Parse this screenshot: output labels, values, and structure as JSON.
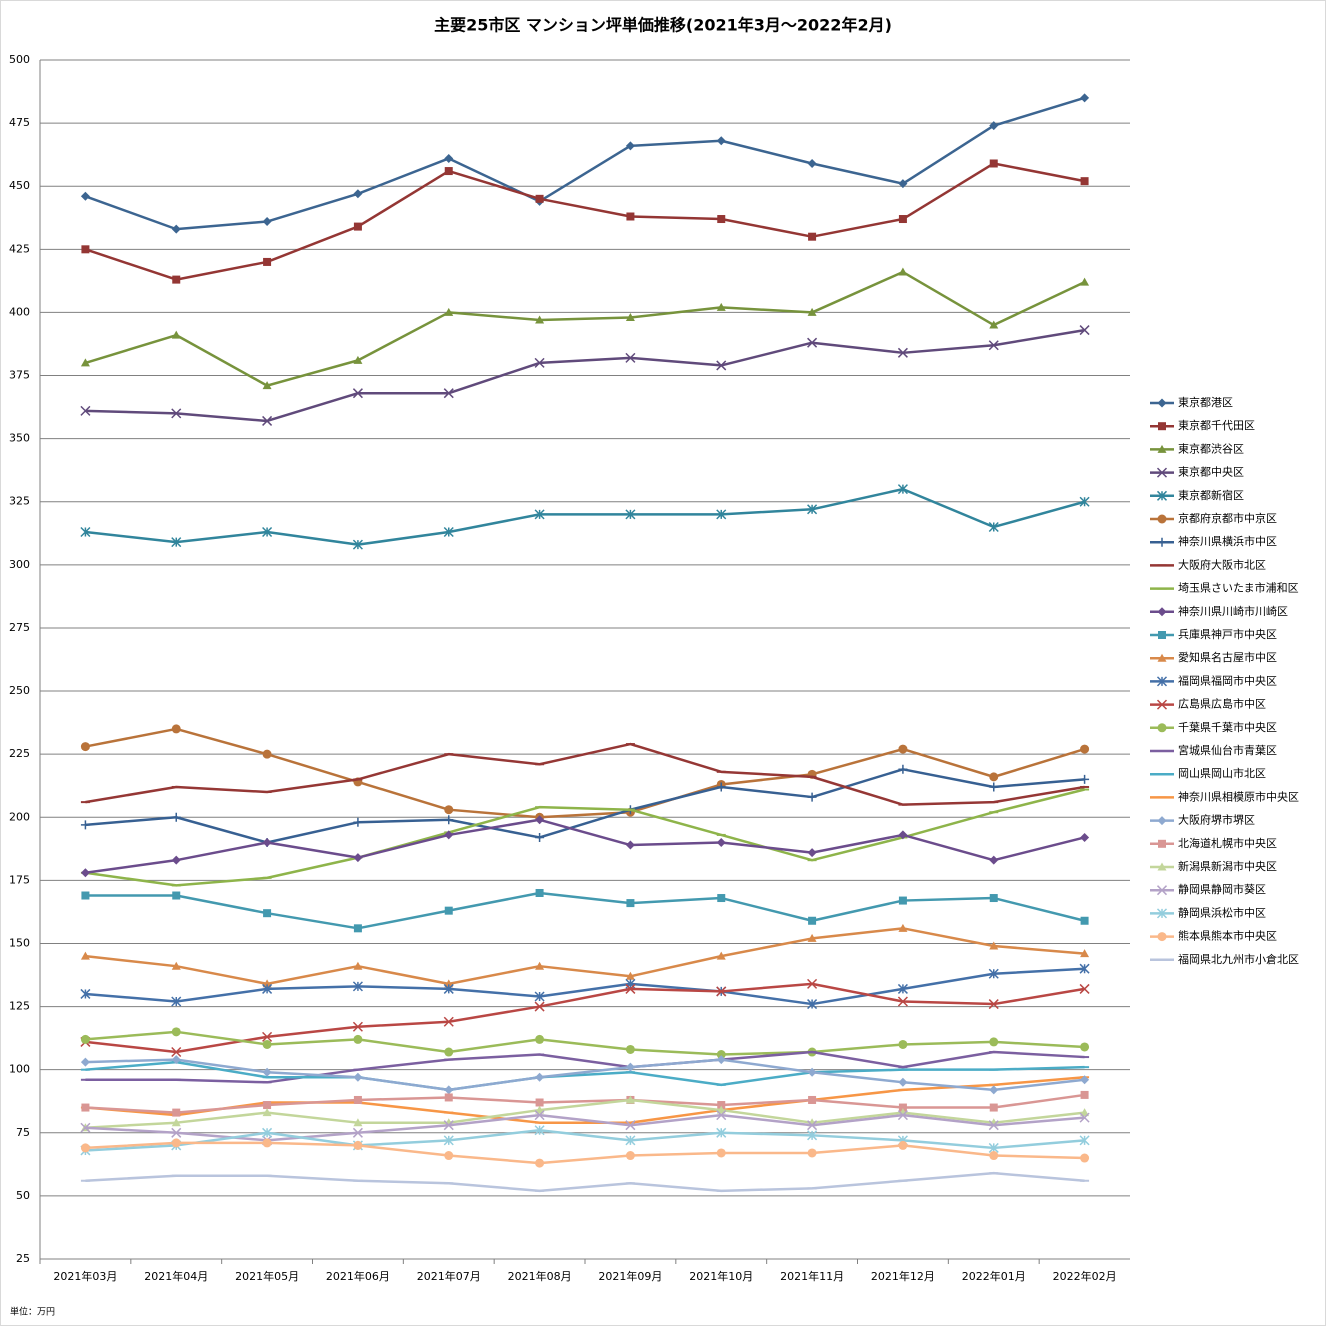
{
  "chart_data": {
    "type": "line",
    "title": "主要25市区 マンション坪単価推移(2021年3月～2022年2月)",
    "note": "単位：万円",
    "categories": [
      "2021年03月",
      "2021年04月",
      "2021年05月",
      "2021年06月",
      "2021年07月",
      "2021年08月",
      "2021年09月",
      "2021年10月",
      "2021年11月",
      "2021年12月",
      "2022年01月",
      "2022年02月"
    ],
    "ylim": [
      25,
      500
    ],
    "yticks": [
      25,
      50,
      75,
      100,
      125,
      150,
      175,
      200,
      225,
      250,
      275,
      300,
      325,
      350,
      375,
      400,
      425,
      450,
      475,
      500
    ],
    "grid": true,
    "legend": "right",
    "series": [
      {
        "name": "東京都港区",
        "color": "#3c6591",
        "marker": "diamond",
        "values": [
          446,
          433,
          436,
          447,
          461,
          444,
          466,
          468,
          459,
          451,
          474,
          485
        ]
      },
      {
        "name": "東京都千代田区",
        "color": "#943634",
        "marker": "square",
        "values": [
          425,
          413,
          420,
          434,
          456,
          445,
          438,
          437,
          430,
          437,
          459,
          452
        ]
      },
      {
        "name": "東京都渋谷区",
        "color": "#77933c",
        "marker": "triangle",
        "values": [
          380,
          391,
          371,
          381,
          400,
          397,
          398,
          402,
          400,
          416,
          395,
          412
        ]
      },
      {
        "name": "東京都中央区",
        "color": "#604a7b",
        "marker": "x",
        "values": [
          361,
          360,
          357,
          368,
          368,
          380,
          382,
          379,
          388,
          384,
          387,
          393
        ]
      },
      {
        "name": "東京都新宿区",
        "color": "#31859c",
        "marker": "star",
        "values": [
          313,
          309,
          313,
          308,
          313,
          320,
          320,
          320,
          322,
          330,
          315,
          325
        ]
      },
      {
        "name": "京都府京都市中京区",
        "color": "#b9733a",
        "marker": "circle",
        "values": [
          228,
          235,
          225,
          214,
          203,
          200,
          202,
          213,
          217,
          227,
          216,
          227
        ]
      },
      {
        "name": "神奈川県横浜市中区",
        "color": "#376092",
        "marker": "plus",
        "values": [
          197,
          200,
          190,
          198,
          199,
          192,
          203,
          212,
          208,
          219,
          212,
          215
        ]
      },
      {
        "name": "大阪府大阪市北区",
        "color": "#953735",
        "marker": "dash",
        "values": [
          206,
          212,
          210,
          215,
          225,
          221,
          229,
          218,
          216,
          205,
          206,
          212
        ]
      },
      {
        "name": "埼玉県さいたま市浦和区",
        "color": "#8eb44a",
        "marker": "dash",
        "values": [
          178,
          173,
          176,
          184,
          194,
          204,
          203,
          193,
          183,
          192,
          202,
          211
        ]
      },
      {
        "name": "神奈川県川崎市川崎区",
        "color": "#6b4c8c",
        "marker": "diamond",
        "values": [
          178,
          183,
          190,
          184,
          193,
          199,
          189,
          190,
          186,
          193,
          183,
          192
        ]
      },
      {
        "name": "兵庫県神戸市中央区",
        "color": "#4399af",
        "marker": "square",
        "values": [
          169,
          169,
          162,
          156,
          163,
          170,
          166,
          168,
          159,
          167,
          168,
          159
        ]
      },
      {
        "name": "愛知県名古屋市中区",
        "color": "#d8894a",
        "marker": "triangle",
        "values": [
          145,
          141,
          134,
          141,
          134,
          141,
          137,
          145,
          152,
          156,
          149,
          146
        ]
      },
      {
        "name": "福岡県福岡市中央区",
        "color": "#4470a8",
        "marker": "star",
        "values": [
          130,
          127,
          132,
          133,
          132,
          129,
          134,
          131,
          126,
          132,
          138,
          140
        ]
      },
      {
        "name": "広島県広島市中区",
        "color": "#b94744",
        "marker": "x",
        "values": [
          111,
          107,
          113,
          117,
          119,
          125,
          132,
          131,
          134,
          127,
          126,
          132
        ]
      },
      {
        "name": "千葉県千葉市中央区",
        "color": "#9bbb59",
        "marker": "circle",
        "values": [
          112,
          115,
          110,
          112,
          107,
          112,
          108,
          106,
          107,
          110,
          111,
          109
        ]
      },
      {
        "name": "宮城県仙台市青葉区",
        "color": "#7b5fa0",
        "marker": "dash",
        "values": [
          96,
          96,
          95,
          100,
          104,
          106,
          101,
          104,
          107,
          101,
          107,
          105
        ]
      },
      {
        "name": "岡山県岡山市北区",
        "color": "#4bacc6",
        "marker": "dash",
        "values": [
          100,
          103,
          97,
          97,
          92,
          97,
          99,
          94,
          99,
          100,
          100,
          101
        ]
      },
      {
        "name": "神奈川県相模原市中央区",
        "color": "#f79646",
        "marker": "dash",
        "values": [
          85,
          82,
          87,
          87,
          83,
          79,
          79,
          84,
          88,
          92,
          94,
          97
        ]
      },
      {
        "name": "大阪府堺市堺区",
        "color": "#8ea9d0",
        "marker": "diamond",
        "values": [
          103,
          104,
          99,
          97,
          92,
          97,
          101,
          104,
          99,
          95,
          92,
          96
        ]
      },
      {
        "name": "北海道札幌市中央区",
        "color": "#d99694",
        "marker": "square",
        "values": [
          85,
          83,
          86,
          88,
          89,
          87,
          88,
          86,
          88,
          85,
          85,
          90
        ]
      },
      {
        "name": "新潟県新潟市中央区",
        "color": "#c3d69b",
        "marker": "triangle",
        "values": [
          77,
          79,
          83,
          79,
          79,
          84,
          88,
          84,
          79,
          83,
          79,
          83
        ]
      },
      {
        "name": "静岡県静岡市葵区",
        "color": "#b3a2c7",
        "marker": "x",
        "values": [
          77,
          75,
          72,
          75,
          78,
          82,
          78,
          82,
          78,
          82,
          78,
          81
        ]
      },
      {
        "name": "静岡県浜松市中区",
        "color": "#93cddd",
        "marker": "star",
        "values": [
          68,
          70,
          75,
          70,
          72,
          76,
          72,
          75,
          74,
          72,
          69,
          72
        ]
      },
      {
        "name": "熊本県熊本市中央区",
        "color": "#fab88a",
        "marker": "circle",
        "values": [
          69,
          71,
          71,
          70,
          66,
          63,
          66,
          67,
          67,
          70,
          66,
          65
        ]
      },
      {
        "name": "福岡県北九州市小倉北区",
        "color": "#b9c4dd",
        "marker": "dash",
        "values": [
          56,
          58,
          58,
          56,
          55,
          52,
          55,
          52,
          53,
          56,
          59,
          56
        ]
      }
    ]
  }
}
